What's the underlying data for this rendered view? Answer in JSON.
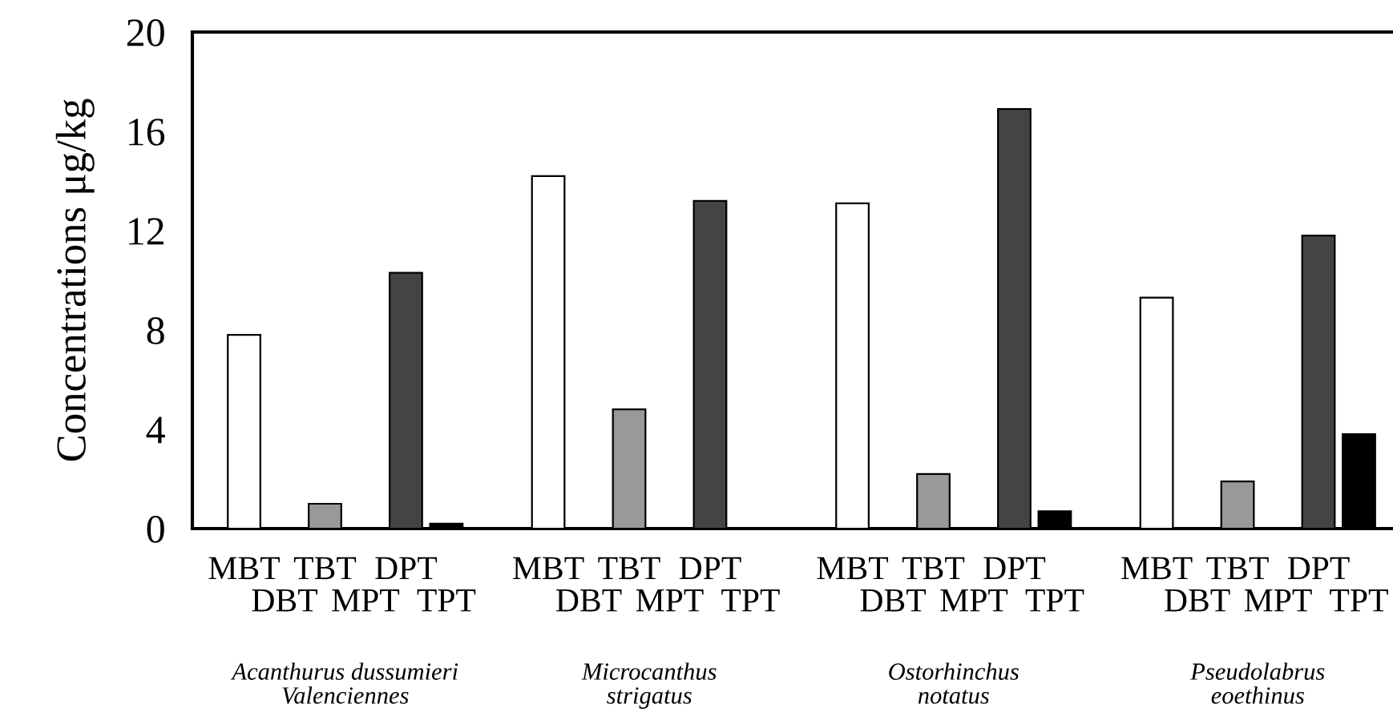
{
  "chart_data": {
    "type": "bar",
    "ylabel": "Concentrations μg/kg",
    "categories": [
      "Acanthurus dussumieri\nValenciennes",
      "Microcanthus\nstrigatus",
      "Ostorhinchus\nnotatus",
      "Pseudolabrus\neoethinus"
    ],
    "series": [
      {
        "name": "MBT",
        "color": "#ffffff",
        "values": [
          7.8,
          14.2,
          13.1,
          9.3
        ]
      },
      {
        "name": "DBT",
        "values": [
          null,
          null,
          null,
          null
        ]
      },
      {
        "name": "TBT",
        "color": "#999999",
        "values": [
          1.0,
          4.8,
          2.2,
          1.9
        ]
      },
      {
        "name": "MPT",
        "values": [
          null,
          null,
          null,
          null
        ]
      },
      {
        "name": "DPT",
        "color": "#444444",
        "values": [
          10.3,
          13.2,
          16.9,
          11.8
        ]
      },
      {
        "name": "TPT",
        "color": "#000000",
        "values": [
          0.2,
          null,
          0.7,
          3.8
        ]
      }
    ],
    "ylim": [
      0,
      20
    ],
    "yticks": [
      0,
      4,
      8,
      12,
      16,
      20
    ],
    "grid": false,
    "legend": false
  }
}
